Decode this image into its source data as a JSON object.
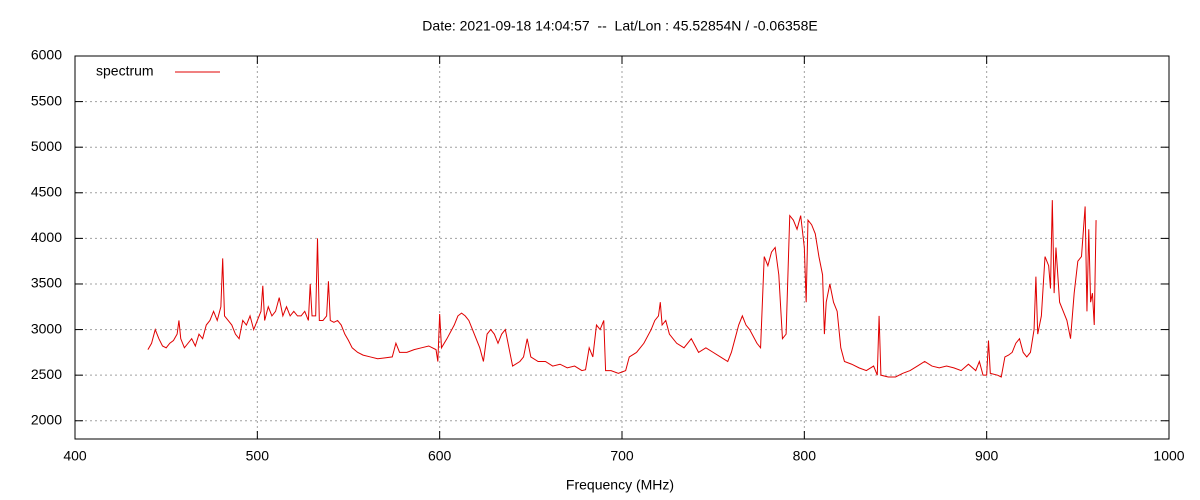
{
  "chart_data": {
    "type": "line",
    "title": "Date: 2021-09-18 14:04:57  --  Lat/Lon : 45.52854N / -0.06358E",
    "x_label": "Frequency (MHz)",
    "xlim": [
      400,
      1000
    ],
    "xticks": [
      400,
      500,
      600,
      700,
      800,
      900,
      1000
    ],
    "ylim": [
      1800,
      6000
    ],
    "yticks": [
      2000,
      2500,
      3000,
      3500,
      4000,
      4500,
      5000,
      5500,
      6000
    ],
    "grid": true,
    "legend": "upper left",
    "x": [
      440,
      442,
      444,
      446,
      448,
      450,
      452,
      454,
      456,
      457,
      458,
      460,
      462,
      464,
      466,
      468,
      470,
      472,
      474,
      476,
      478,
      480,
      481,
      482,
      484,
      486,
      488,
      490,
      492,
      494,
      496,
      498,
      500,
      502,
      503,
      504,
      506,
      508,
      510,
      512,
      514,
      516,
      518,
      520,
      522,
      524,
      526,
      528,
      529,
      530,
      532,
      533,
      534,
      536,
      538,
      539,
      540,
      542,
      544,
      546,
      548,
      550,
      552,
      555,
      558,
      562,
      566,
      570,
      574,
      576,
      578,
      582,
      586,
      590,
      594,
      598,
      599,
      600,
      601,
      604,
      608,
      610,
      612,
      614,
      616,
      618,
      620,
      622,
      624,
      626,
      628,
      630,
      632,
      634,
      636,
      638,
      640,
      644,
      646,
      648,
      650,
      654,
      658,
      662,
      666,
      670,
      674,
      678,
      680,
      682,
      684,
      686,
      688,
      690,
      691,
      694,
      698,
      702,
      704,
      708,
      712,
      716,
      718,
      720,
      721,
      722,
      724,
      726,
      730,
      734,
      738,
      742,
      746,
      750,
      754,
      758,
      760,
      762,
      764,
      766,
      768,
      770,
      774,
      776,
      778,
      780,
      782,
      784,
      786,
      788,
      790,
      792,
      794,
      796,
      798,
      800,
      801,
      802,
      804,
      806,
      808,
      810,
      811,
      812,
      814,
      816,
      818,
      820,
      822,
      826,
      830,
      834,
      838,
      840,
      841,
      842,
      846,
      850,
      854,
      858,
      862,
      866,
      870,
      874,
      878,
      882,
      886,
      890,
      894,
      896,
      898,
      900,
      901,
      902,
      906,
      908,
      910,
      912,
      914,
      916,
      918,
      920,
      922,
      924,
      926,
      927,
      928,
      930,
      932,
      934,
      935,
      936,
      937,
      938,
      940,
      942,
      944,
      946,
      948,
      950,
      952,
      954,
      955,
      956,
      957,
      958,
      959,
      960
    ],
    "series": [
      {
        "name": "spectrum",
        "color": "#e00000",
        "values": [
          2780,
          2850,
          3000,
          2900,
          2820,
          2800,
          2850,
          2880,
          2950,
          3100,
          2900,
          2800,
          2850,
          2900,
          2820,
          2950,
          2900,
          3050,
          3100,
          3200,
          3100,
          3250,
          3780,
          3150,
          3100,
          3050,
          2950,
          2900,
          3100,
          3050,
          3150,
          3000,
          3100,
          3200,
          3480,
          3100,
          3250,
          3150,
          3200,
          3350,
          3150,
          3250,
          3150,
          3200,
          3150,
          3150,
          3200,
          3100,
          3500,
          3150,
          3150,
          4000,
          3100,
          3100,
          3150,
          3530,
          3100,
          3080,
          3100,
          3050,
          2950,
          2880,
          2800,
          2750,
          2720,
          2700,
          2680,
          2690,
          2700,
          2850,
          2750,
          2750,
          2780,
          2800,
          2820,
          2780,
          2650,
          3170,
          2800,
          2900,
          3050,
          3150,
          3180,
          3150,
          3100,
          3000,
          2900,
          2800,
          2650,
          2950,
          3000,
          2950,
          2850,
          2950,
          3000,
          2800,
          2600,
          2650,
          2700,
          2900,
          2700,
          2650,
          2650,
          2600,
          2620,
          2580,
          2600,
          2550,
          2560,
          2800,
          2700,
          3050,
          3000,
          3100,
          2550,
          2550,
          2520,
          2550,
          2700,
          2750,
          2850,
          3000,
          3100,
          3150,
          3300,
          3050,
          3100,
          2950,
          2850,
          2800,
          2900,
          2750,
          2800,
          2750,
          2700,
          2650,
          2750,
          2900,
          3050,
          3150,
          3050,
          3000,
          2850,
          2800,
          3800,
          3700,
          3850,
          3900,
          3600,
          2900,
          2950,
          4250,
          4200,
          4100,
          4250,
          3900,
          3300,
          4200,
          4150,
          4050,
          3800,
          3600,
          2950,
          3300,
          3500,
          3300,
          3200,
          2800,
          2650,
          2620,
          2580,
          2550,
          2600,
          2500,
          3150,
          2500,
          2480,
          2480,
          2520,
          2550,
          2600,
          2650,
          2600,
          2580,
          2600,
          2580,
          2550,
          2620,
          2550,
          2650,
          2500,
          2500,
          2880,
          2520,
          2500,
          2480,
          2700,
          2720,
          2750,
          2850,
          2900,
          2750,
          2700,
          2750,
          3000,
          3580,
          2950,
          3150,
          3800,
          3700,
          3450,
          4420,
          3400,
          3900,
          3300,
          3200,
          3100,
          2900,
          3400,
          3750,
          3800,
          4350,
          3200,
          4100,
          3300,
          3400,
          3050,
          4200
        ]
      }
    ]
  }
}
